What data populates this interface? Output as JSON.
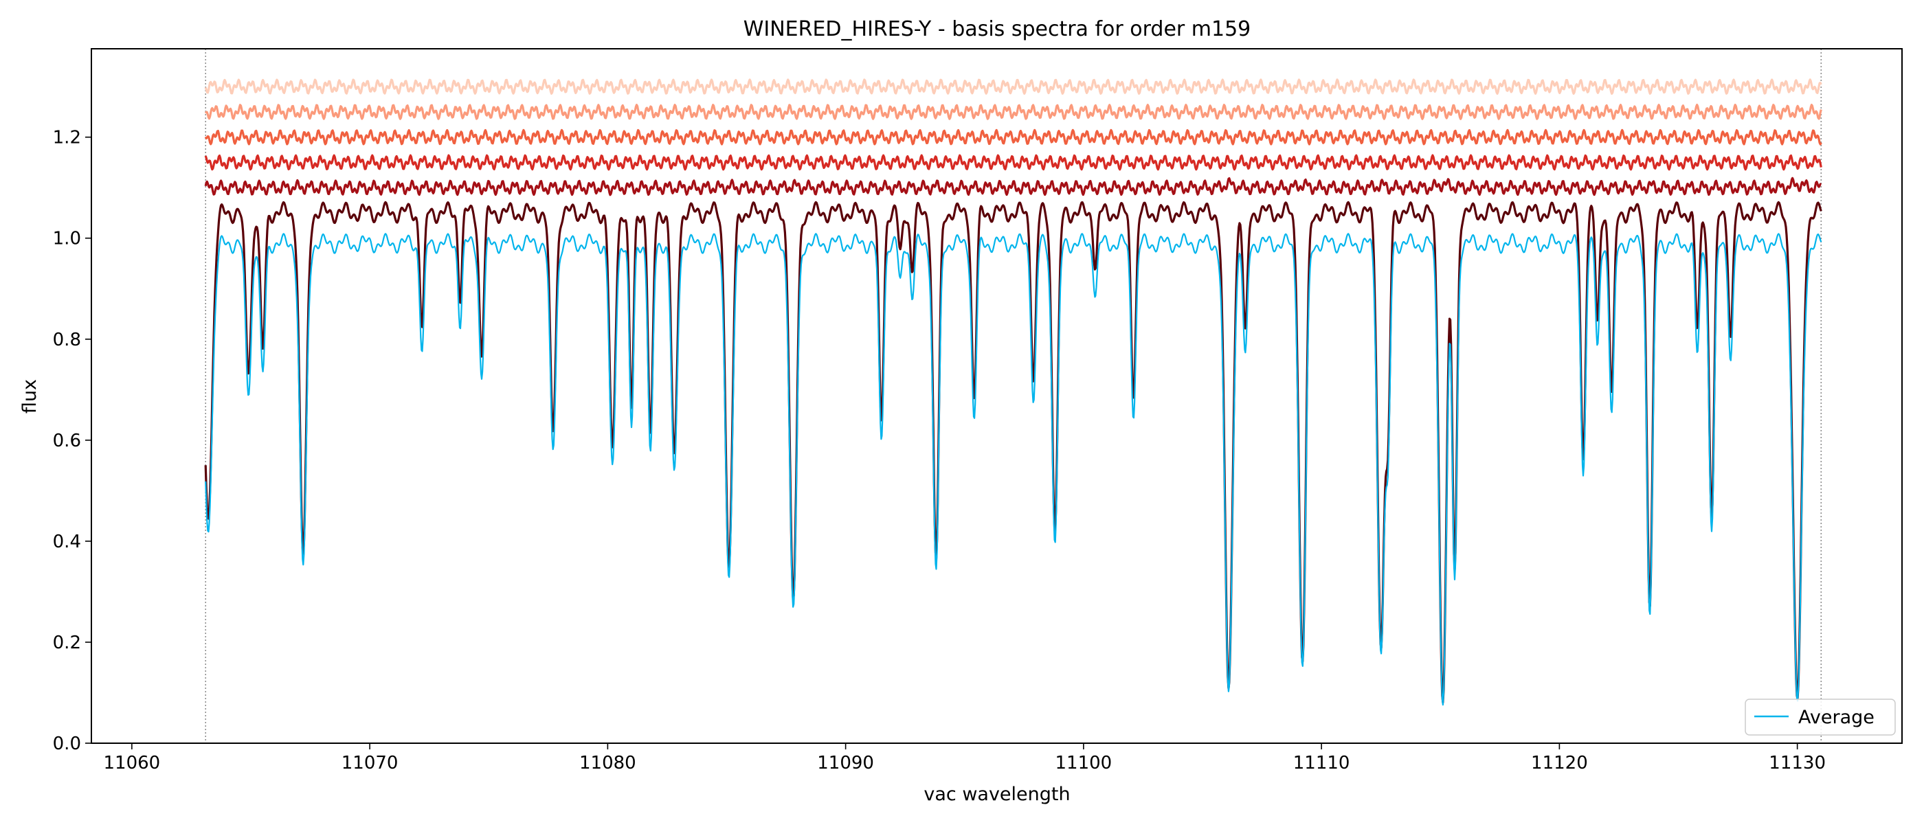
{
  "chart_data": {
    "type": "line",
    "title": "WINERED_HIRES-Y - basis spectra for order m159",
    "xlabel": "vac wavelength",
    "ylabel": "flux",
    "xlim": [
      11058.3,
      11134.4
    ],
    "ylim": [
      0.0,
      1.375
    ],
    "xticks": [
      11060,
      11070,
      11080,
      11090,
      11100,
      11110,
      11120,
      11130
    ],
    "xtick_labels": [
      "11060",
      "11070",
      "11080",
      "11090",
      "11100",
      "11110",
      "11120",
      "11130"
    ],
    "yticks": [
      0.0,
      0.2,
      0.4,
      0.6,
      0.8,
      1.0,
      1.2
    ],
    "ytick_labels": [
      "0.0",
      "0.2",
      "0.4",
      "0.6",
      "0.8",
      "1.0",
      "1.2"
    ],
    "vlines": [
      11063.1,
      11131.0
    ],
    "grid": false,
    "legend": {
      "position": "lower-right",
      "entries": [
        "Average"
      ]
    },
    "wavelength_range": [
      11063.1,
      11131.0
    ],
    "continuum": 1.02,
    "absorption_lines": [
      {
        "x": 11063.2,
        "depth": 0.58,
        "width": 0.18
      },
      {
        "x": 11064.9,
        "depth": 0.3,
        "width": 0.12
      },
      {
        "x": 11065.5,
        "depth": 0.27,
        "width": 0.1
      },
      {
        "x": 11067.2,
        "depth": 0.66,
        "width": 0.14
      },
      {
        "x": 11072.2,
        "depth": 0.22,
        "width": 0.09
      },
      {
        "x": 11073.8,
        "depth": 0.16,
        "width": 0.08
      },
      {
        "x": 11074.7,
        "depth": 0.27,
        "width": 0.1
      },
      {
        "x": 11077.7,
        "depth": 0.42,
        "width": 0.12
      },
      {
        "x": 11080.2,
        "depth": 0.47,
        "width": 0.12
      },
      {
        "x": 11081.0,
        "depth": 0.38,
        "width": 0.09
      },
      {
        "x": 11081.8,
        "depth": 0.44,
        "width": 0.1
      },
      {
        "x": 11082.8,
        "depth": 0.48,
        "width": 0.12
      },
      {
        "x": 11085.1,
        "depth": 0.69,
        "width": 0.14
      },
      {
        "x": 11087.8,
        "depth": 0.76,
        "width": 0.14
      },
      {
        "x": 11091.5,
        "depth": 0.4,
        "width": 0.1
      },
      {
        "x": 11092.3,
        "depth": 0.08,
        "width": 0.08
      },
      {
        "x": 11092.8,
        "depth": 0.11,
        "width": 0.08
      },
      {
        "x": 11093.8,
        "depth": 0.67,
        "width": 0.12
      },
      {
        "x": 11095.4,
        "depth": 0.36,
        "width": 0.1
      },
      {
        "x": 11097.9,
        "depth": 0.32,
        "width": 0.1
      },
      {
        "x": 11098.8,
        "depth": 0.6,
        "width": 0.12
      },
      {
        "x": 11100.5,
        "depth": 0.1,
        "width": 0.08
      },
      {
        "x": 11102.1,
        "depth": 0.34,
        "width": 0.1
      },
      {
        "x": 11106.1,
        "depth": 0.92,
        "width": 0.16
      },
      {
        "x": 11106.8,
        "depth": 0.24,
        "width": 0.09
      },
      {
        "x": 11109.2,
        "depth": 0.87,
        "width": 0.14
      },
      {
        "x": 11112.5,
        "depth": 0.83,
        "width": 0.14
      },
      {
        "x": 11112.8,
        "depth": 0.4,
        "width": 0.09
      },
      {
        "x": 11115.1,
        "depth": 0.94,
        "width": 0.15
      },
      {
        "x": 11115.6,
        "depth": 0.68,
        "width": 0.1
      },
      {
        "x": 11121.0,
        "depth": 0.47,
        "width": 0.1
      },
      {
        "x": 11121.6,
        "depth": 0.22,
        "width": 0.08
      },
      {
        "x": 11122.2,
        "depth": 0.35,
        "width": 0.1
      },
      {
        "x": 11123.8,
        "depth": 0.75,
        "width": 0.12
      },
      {
        "x": 11125.8,
        "depth": 0.23,
        "width": 0.09
      },
      {
        "x": 11126.4,
        "depth": 0.58,
        "width": 0.11
      },
      {
        "x": 11127.2,
        "depth": 0.24,
        "width": 0.09
      },
      {
        "x": 11130.0,
        "depth": 0.94,
        "width": 0.18
      }
    ],
    "series": [
      {
        "name": "Average",
        "color": "#00b4ec",
        "role": "average",
        "scale": 0.97
      },
      {
        "color": "#5a0008",
        "role": "basis",
        "scale": 1.03
      },
      {
        "color": "#a50f15",
        "offset": 1.1,
        "role": "component"
      },
      {
        "color": "#d72a23",
        "offset": 1.15,
        "role": "component"
      },
      {
        "color": "#f0603f",
        "offset": 1.2,
        "role": "component"
      },
      {
        "color": "#fb9a7b",
        "offset": 1.25,
        "role": "component"
      },
      {
        "color": "#fdcdb8",
        "offset": 1.3,
        "role": "component"
      }
    ],
    "colors": {
      "average": "#00b4ec",
      "basis_dark": "#5a0008",
      "vline": "#888888"
    }
  }
}
